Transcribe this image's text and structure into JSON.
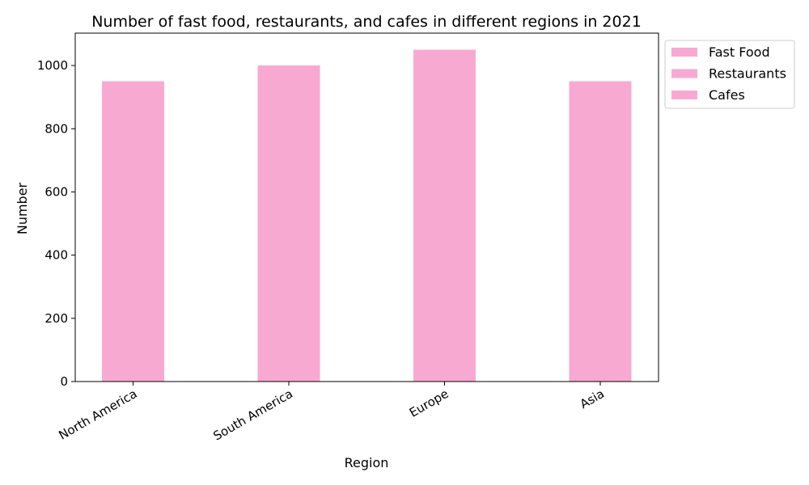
{
  "chart_data": {
    "type": "bar",
    "title": "Number of fast food, restaurants, and cafes in different regions in 2021",
    "xlabel": "Region",
    "ylabel": "Number",
    "categories": [
      "North America",
      "South America",
      "Europe",
      "Asia"
    ],
    "series": [
      {
        "name": "Fast Food",
        "values": [
          950,
          1000,
          1050,
          950
        ],
        "color": "#f8a9d1"
      },
      {
        "name": "Restaurants",
        "values": [
          950,
          1000,
          1050,
          950
        ],
        "color": "#f8a9d1"
      },
      {
        "name": "Cafes",
        "values": [
          950,
          1000,
          1050,
          950
        ],
        "color": "#f8a9d1"
      }
    ],
    "ylim": [
      0,
      1102.5
    ],
    "yticks": [
      0,
      200,
      400,
      600,
      800,
      1000
    ],
    "ytick_labels": [
      "0",
      "200",
      "400",
      "600",
      "800",
      "1000"
    ],
    "grid": false,
    "legend_position": "outside-top-right"
  }
}
